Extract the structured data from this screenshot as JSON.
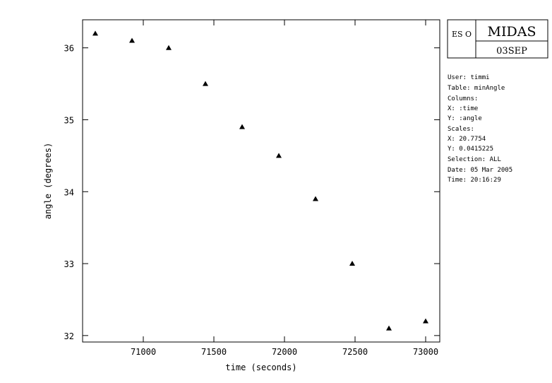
{
  "chart_data": {
    "type": "scatter",
    "xlabel": "time (seconds)",
    "ylabel": "angle (degrees)",
    "x": [
      70660,
      70920,
      71180,
      71440,
      71700,
      71960,
      72220,
      72480,
      72740,
      73000
    ],
    "series": [
      {
        "color": "#000000",
        "values": [
          36.2,
          36.1,
          36.0,
          35.5,
          34.9,
          34.5,
          33.9,
          33.0,
          32.1,
          32.2
        ]
      }
    ],
    "xlim": [
      70570,
      73100
    ],
    "xticks": [
      71000,
      71500,
      72000,
      72500,
      73000
    ],
    "ylim": [
      31.91,
      36.39
    ],
    "yticks": [
      32,
      33,
      34,
      35,
      36
    ],
    "marker": "triangle"
  },
  "panel": {
    "logo": "ES O",
    "brand": "MIDAS",
    "version": "03SEP",
    "lines": [
      "User: timmi",
      "Table: minAngle",
      "Columns:",
      "X: :time",
      "Y: :angle",
      "Scales:",
      "X: 20.7754",
      "Y: 0.0415225",
      "Selection:  ALL",
      "Date: 05 Mar 2005",
      "Time: 20:16:29"
    ]
  }
}
